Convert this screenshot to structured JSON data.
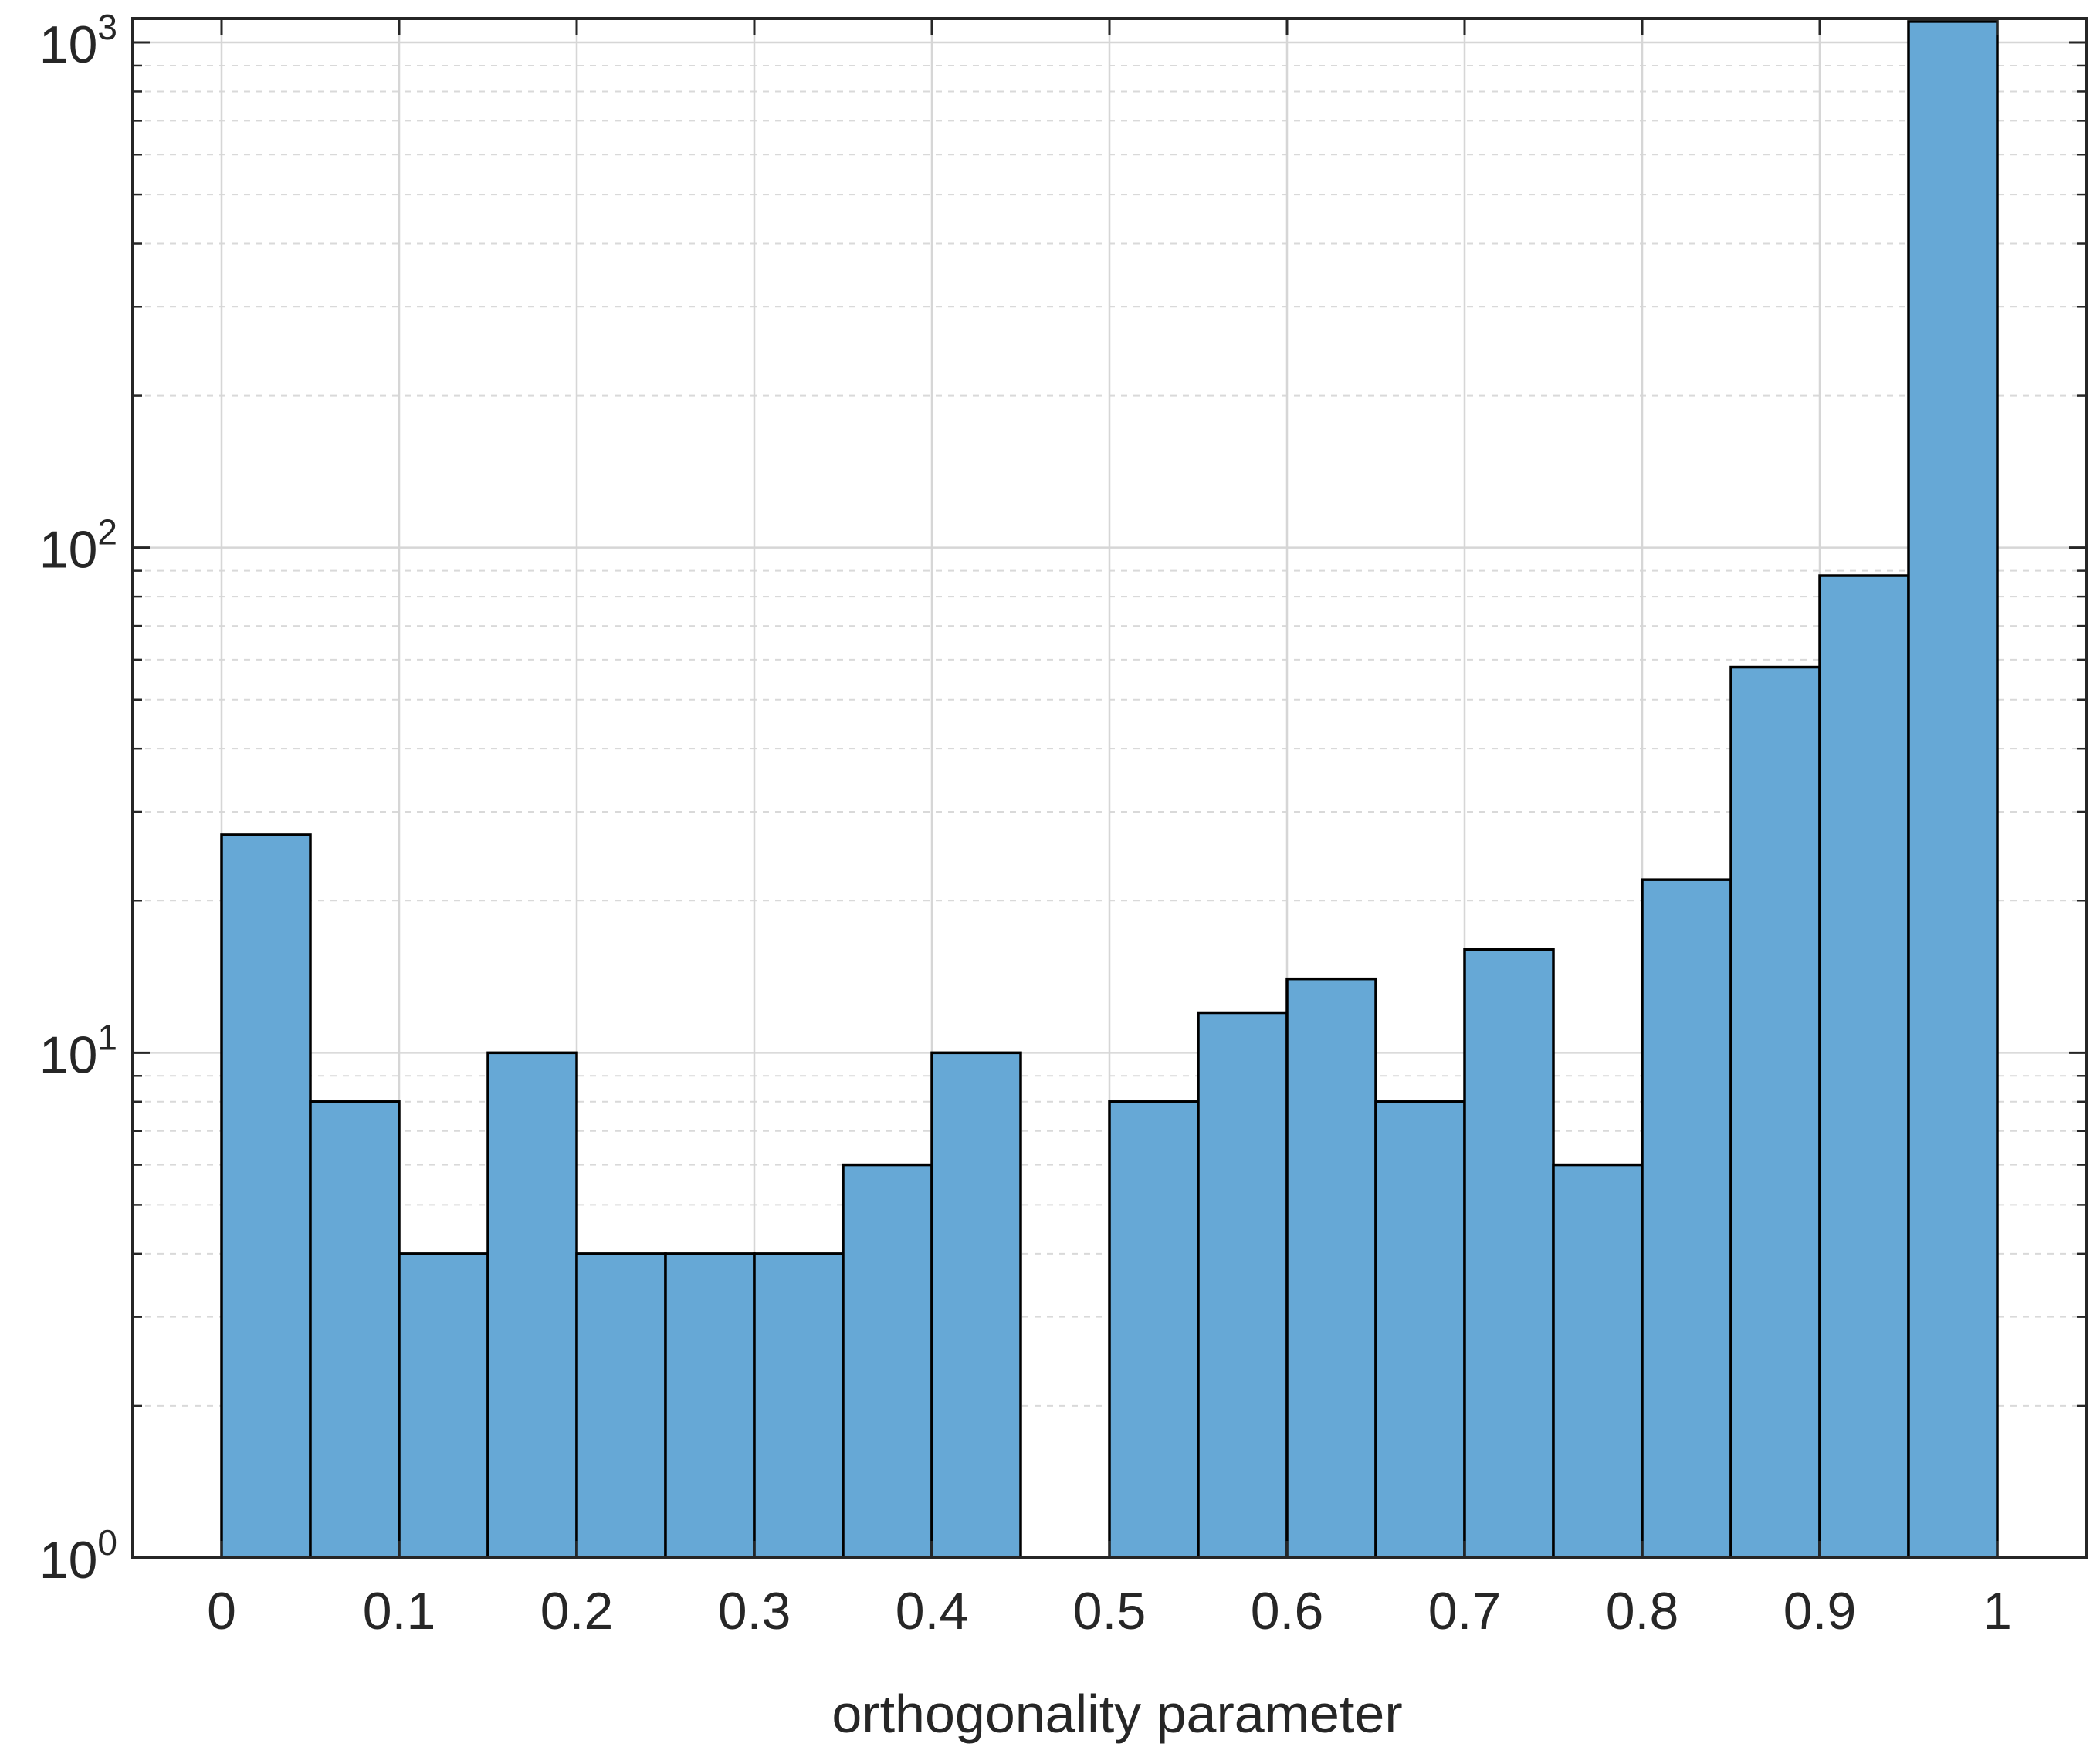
{
  "chart_data": {
    "type": "bar",
    "subtype": "histogram",
    "title": "",
    "xlabel": "orthogonality parameter",
    "ylabel": "",
    "xlim": [
      -0.05,
      1.05
    ],
    "ylim": [
      1,
      1100
    ],
    "y_scale": "log",
    "grid": true,
    "minor_grid": true,
    "legend": "none",
    "bar_color": "#66a8d6",
    "edge_color": "#000000",
    "x_ticks": [
      "0",
      "0.1",
      "0.2",
      "0.3",
      "0.4",
      "0.5",
      "0.6",
      "0.7",
      "0.8",
      "0.9",
      "1"
    ],
    "x_tick_values": [
      0,
      0.1,
      0.2,
      0.3,
      0.4,
      0.5,
      0.6,
      0.7,
      0.8,
      0.9,
      1
    ],
    "y_ticks": [
      {
        "base": "10",
        "exp": "0",
        "value": 1
      },
      {
        "base": "10",
        "exp": "1",
        "value": 10
      },
      {
        "base": "10",
        "exp": "2",
        "value": 100
      },
      {
        "base": "10",
        "exp": "3",
        "value": 1000
      }
    ],
    "bin_edges": [
      0,
      0.05,
      0.1,
      0.15,
      0.2,
      0.25,
      0.3,
      0.35,
      0.4,
      0.45,
      0.5,
      0.55,
      0.6,
      0.65,
      0.7,
      0.75,
      0.8,
      0.85,
      0.9,
      0.95,
      1.0
    ],
    "counts": [
      27,
      8,
      4,
      10,
      4,
      4,
      4,
      6,
      10,
      0,
      8,
      12,
      14,
      8,
      16,
      6,
      22,
      58,
      88,
      1100
    ]
  }
}
